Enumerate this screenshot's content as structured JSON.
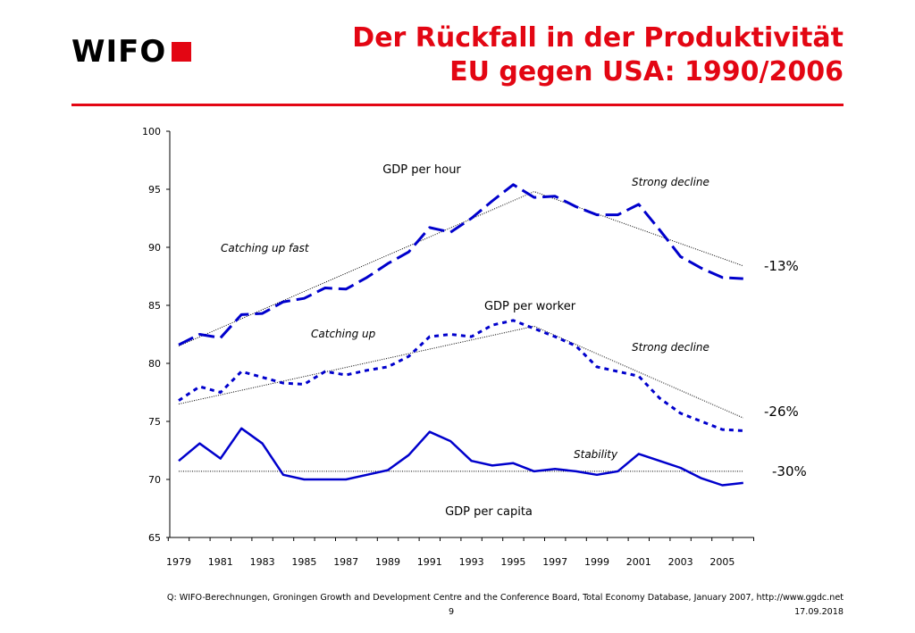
{
  "logo": {
    "text": "WIFO"
  },
  "title": {
    "line1": "Der Rückfall in der Produktivität",
    "line2": "EU gegen USA: 1990/2006"
  },
  "chart_data": {
    "type": "line",
    "x": [
      1979,
      1980,
      1981,
      1982,
      1983,
      1984,
      1985,
      1986,
      1987,
      1988,
      1989,
      1990,
      1991,
      1992,
      1993,
      1994,
      1995,
      1996,
      1997,
      1998,
      1999,
      2000,
      2001,
      2002,
      2003,
      2004,
      2005,
      2006
    ],
    "x_tick_labels": [
      "1979",
      "1981",
      "1983",
      "1985",
      "1987",
      "1989",
      "1991",
      "1993",
      "1995",
      "1997",
      "1999",
      "2001",
      "2003",
      "2005"
    ],
    "ylim": [
      65,
      100
    ],
    "y_ticks": [
      "100",
      "95",
      "90",
      "85",
      "80",
      "75",
      "70",
      "65"
    ],
    "series": [
      {
        "name": "GDP per hour",
        "style": "long-dash",
        "values": [
          81.6,
          82.5,
          82.2,
          84.2,
          84.3,
          85.3,
          85.6,
          86.5,
          86.4,
          87.4,
          88.6,
          89.6,
          91.7,
          91.3,
          92.5,
          94.0,
          95.4,
          94.3,
          94.4,
          93.5,
          92.8,
          92.8,
          93.7,
          91.5,
          89.2,
          88.2,
          87.4,
          87.3
        ]
      },
      {
        "name": "GDP per worker",
        "style": "short-dash",
        "values": [
          76.8,
          78.0,
          77.5,
          79.3,
          78.8,
          78.3,
          78.2,
          79.3,
          79.0,
          79.4,
          79.7,
          80.6,
          82.3,
          82.5,
          82.3,
          83.3,
          83.7,
          83.0,
          82.3,
          81.5,
          79.7,
          79.3,
          78.9,
          77.0,
          75.7,
          75.0,
          74.3,
          74.2
        ]
      },
      {
        "name": "GDP per capita",
        "style": "solid",
        "values": [
          71.6,
          73.1,
          71.8,
          74.4,
          73.1,
          70.4,
          70.0,
          70.0,
          70.0,
          70.4,
          70.8,
          72.1,
          74.1,
          73.3,
          71.6,
          71.2,
          71.4,
          70.7,
          70.9,
          70.7,
          70.4,
          70.7,
          72.2,
          71.6,
          71.0,
          70.1,
          69.5,
          69.7
        ]
      }
    ],
    "trend_lines": [
      {
        "name": "GDP per hour trend",
        "points": [
          [
            1979,
            81.5
          ],
          [
            1996,
            94.8
          ],
          [
            2006,
            88.4
          ]
        ]
      },
      {
        "name": "GDP per worker trend",
        "points": [
          [
            1979,
            76.5
          ],
          [
            1996,
            83.2
          ],
          [
            2006,
            75.3
          ]
        ]
      },
      {
        "name": "GDP per capita trend",
        "points": [
          [
            1979,
            70.7
          ],
          [
            2006,
            70.7
          ]
        ]
      }
    ],
    "series_labels": [
      "GDP per hour",
      "GDP per worker",
      "GDP per capita"
    ],
    "annotations": [
      "Catching up fast",
      "Catching up",
      "Strong decline",
      "Strong decline",
      "Stability"
    ],
    "changes": [
      "-13%",
      "-26%",
      "-30%"
    ]
  },
  "footer": {
    "source": "Q: WIFO-Berechnungen, Groningen Growth and Development Centre and the Conference Board, Total Economy Database, January 2007, http://www.ggdc.net",
    "page": "9",
    "date": "17.09.2018"
  },
  "colors": {
    "brand_red": "#e30613",
    "series_blue": "#0000cc"
  }
}
